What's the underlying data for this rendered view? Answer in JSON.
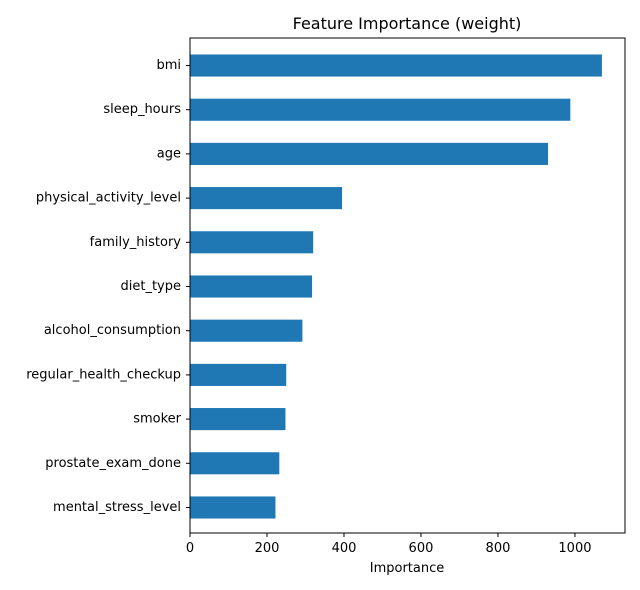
{
  "chart_data": {
    "type": "bar",
    "orientation": "horizontal",
    "title": "Feature Importance (weight)",
    "xlabel": "Importance",
    "ylabel": "",
    "categories": [
      "bmi",
      "sleep_hours",
      "age",
      "physical_activity_level",
      "family_history",
      "diet_type",
      "alcohol_consumption",
      "regular_health_checkup",
      "smoker",
      "prostate_exam_done",
      "mental_stress_level"
    ],
    "values": [
      1070,
      988,
      930,
      395,
      320,
      317,
      292,
      250,
      248,
      232,
      222
    ],
    "xlim": [
      0,
      1130
    ],
    "xticks": [
      0,
      200,
      400,
      600,
      800,
      1000
    ],
    "grid": false,
    "legend": "none",
    "bar_color": "#1f77b4"
  }
}
